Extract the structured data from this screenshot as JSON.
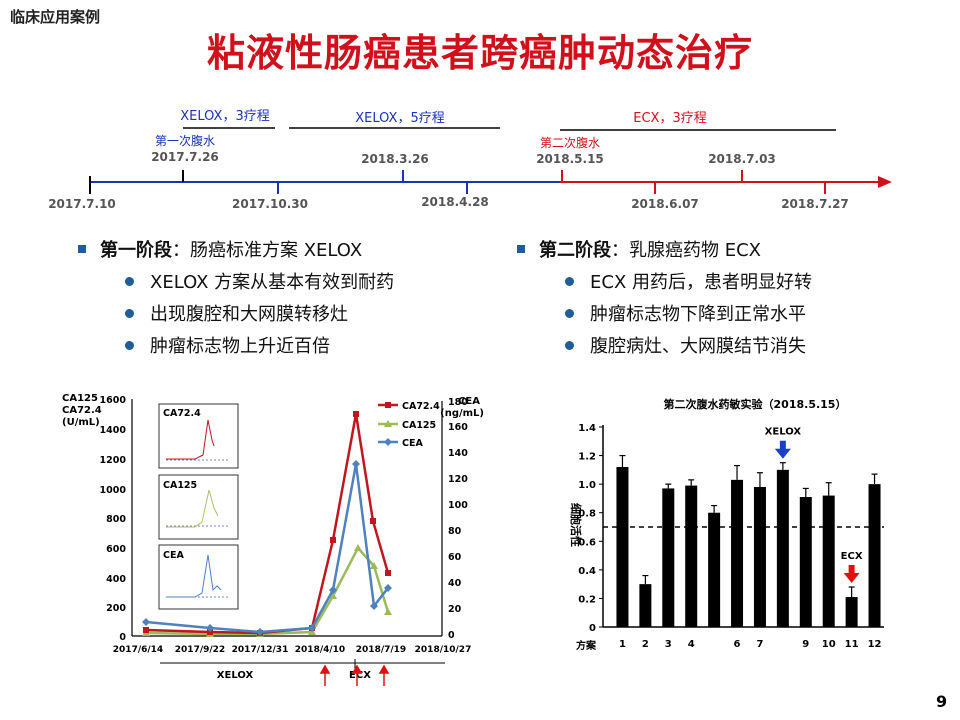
{
  "header": {
    "category": "临床应用案例",
    "title": "粘液性肠癌患者跨癌肿动态治疗"
  },
  "timeline": {
    "phases": [
      {
        "label": "XELOX，3疗程",
        "color": "#1a33b3"
      },
      {
        "label": "XELOX，5疗程",
        "color": "#1a33b3"
      },
      {
        "label": "ECX，3疗程",
        "color": "#d0101b"
      }
    ],
    "events": [
      {
        "label": "第一次腹水",
        "date": "2017.7.26",
        "color": "#1a33b3"
      },
      {
        "label": "第二次腹水",
        "date": "2018.5.15",
        "color": "#d0101b"
      }
    ],
    "upper_dates": [
      "2018.3.26",
      "2018.7.03"
    ],
    "lower_dates": [
      "2017.7.10",
      "2017.10.30",
      "2018.4.28",
      "2018.6.07",
      "2018.7.27"
    ]
  },
  "stage1": {
    "heading": "第一阶段",
    "rest": "：肠癌标准方案 XELOX",
    "items": [
      "XELOX 方案从基本有效到耐药",
      "出现腹腔和大网膜转移灶",
      "肿瘤标志物上升近百倍"
    ]
  },
  "stage2": {
    "heading": "第二阶段",
    "rest": "：乳腺癌药物 ECX",
    "items": [
      "ECX 用药后，患者明显好转",
      "肿瘤标志物下降到正常水平",
      "腹腔病灶、大网膜结节消失"
    ]
  },
  "marker_chart": {
    "left_axis_label": [
      "CA125",
      "CA72.4",
      "(U/mL)"
    ],
    "right_axis_label": [
      "CEA",
      "(ng/mL)"
    ],
    "left_ticks": [
      "1600",
      "1400",
      "1200",
      "1000",
      "800",
      "600",
      "400",
      "200",
      "0"
    ],
    "right_ticks": [
      "180",
      "160",
      "140",
      "120",
      "100",
      "80",
      "60",
      "40",
      "20",
      "0"
    ],
    "x_ticks": [
      "2017/6/14",
      "2017/9/22",
      "2017/12/31",
      "2018/4/10",
      "2018/7/19",
      "2018/10/27"
    ],
    "legend": [
      "CA72.4",
      "CA125",
      "CEA"
    ],
    "insets": [
      "CA72.4",
      "CA125",
      "CEA"
    ],
    "regimens": [
      "XELOX",
      "ECX"
    ],
    "colors": {
      "CA72.4": "#c0161e",
      "CA125": "#9bbb59",
      "CEA": "#4f81bd"
    }
  },
  "chart_data": {
    "type": "bar",
    "title": "第二次腹水药敏实验（2018.5.15）",
    "xlabel": "方案",
    "ylabel": "细胞活性",
    "categories": [
      "1",
      "2",
      "3",
      "4",
      "",
      "6",
      "7",
      "",
      "9",
      "10",
      "11",
      "12"
    ],
    "values": [
      1.12,
      0.3,
      0.97,
      0.99,
      0.8,
      1.03,
      0.98,
      1.1,
      0.91,
      0.92,
      0.21,
      1.0
    ],
    "errors": [
      0.08,
      0.06,
      0.03,
      0.04,
      0.05,
      0.1,
      0.1,
      0.05,
      0.06,
      0.09,
      0.07,
      0.07
    ],
    "y_ticks": [
      "0",
      "0.2",
      "0.4",
      "0.6",
      "0.8",
      "1.0",
      "1.2",
      "1.4"
    ],
    "ylim": [
      0,
      1.4
    ],
    "threshold": 0.7,
    "annotations": [
      {
        "text": "XELOX",
        "bar_index": 7,
        "arrow_color": "#1a3fcc"
      },
      {
        "text": "ECX",
        "bar_index": 10,
        "arrow_color": "#e01010"
      }
    ]
  },
  "page_number": "9"
}
